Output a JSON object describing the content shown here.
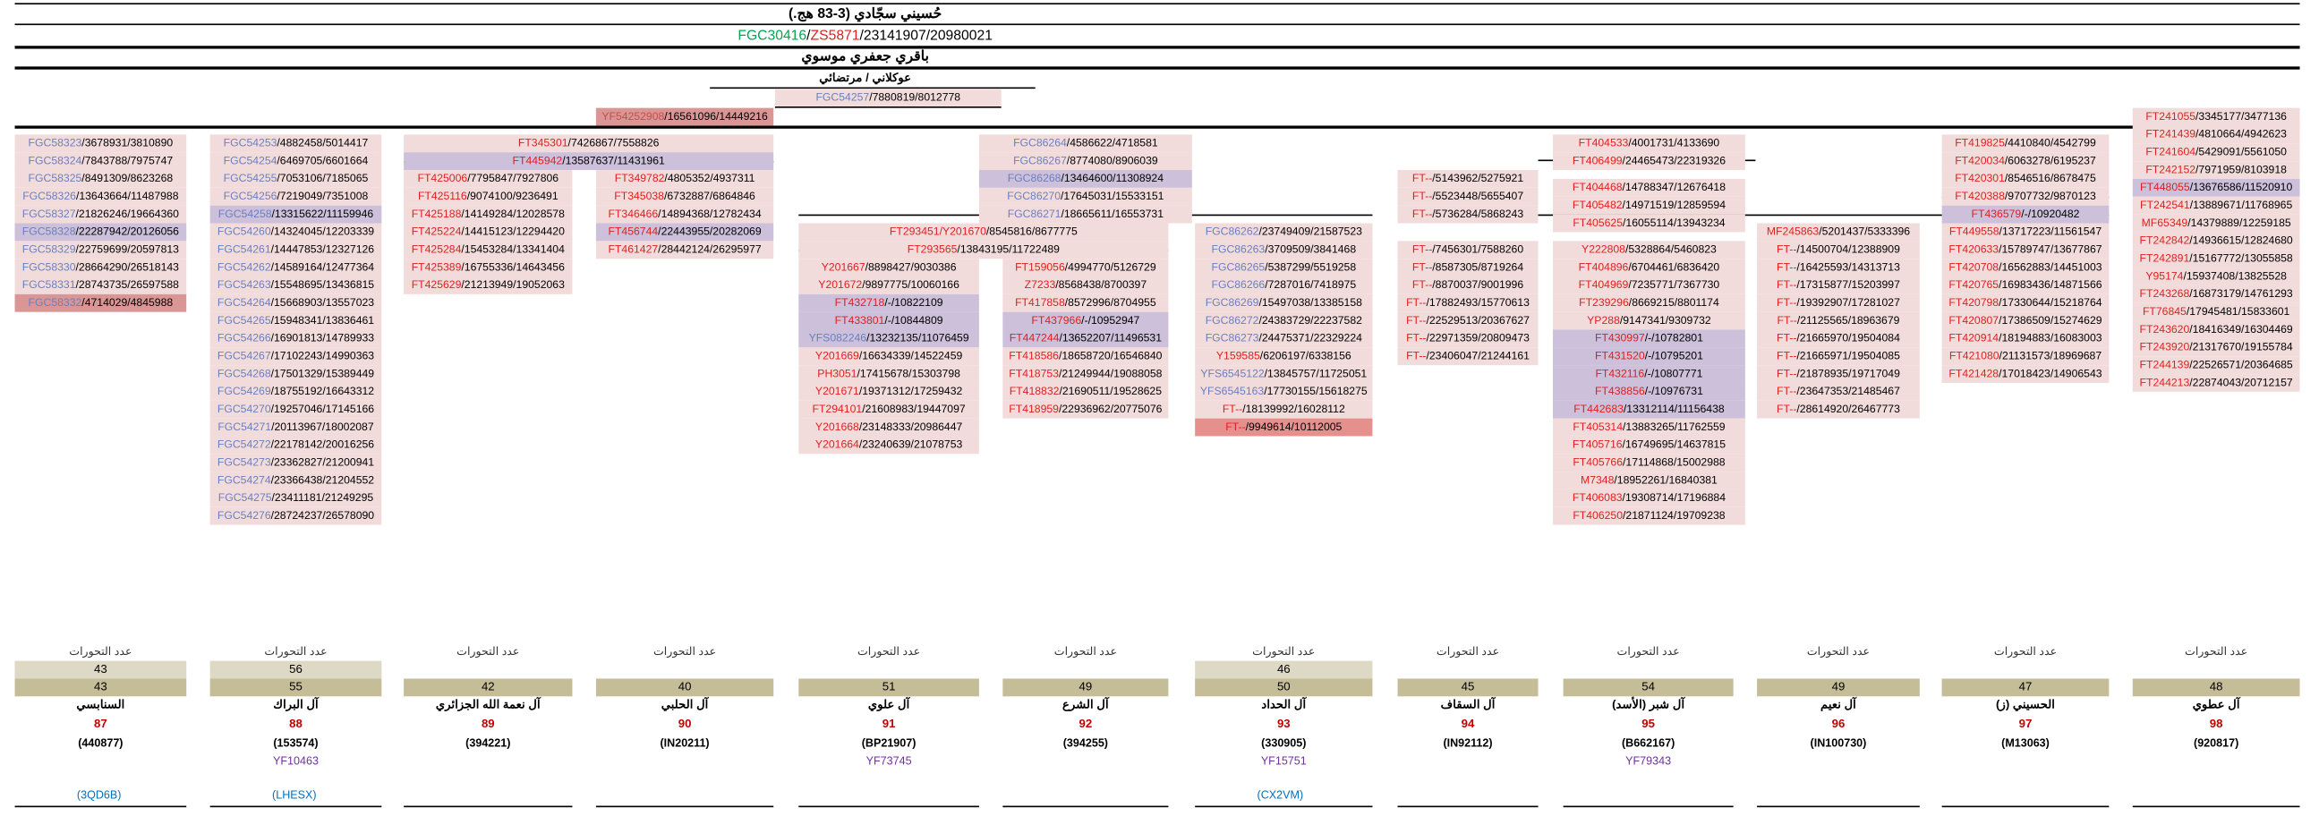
{
  "header": {
    "title": "حُسيني سجّادي (3-83 هج.)",
    "snp": [
      {
        "text": "FGC30416",
        "color": "#00a651"
      },
      {
        "text": "/",
        "color": "#000000"
      },
      {
        "text": "ZS5871",
        "color": "#e02020"
      },
      {
        "text": "/23141907/20980021",
        "color": "#000000"
      }
    ],
    "branch1": "باقري جعفري موسوي",
    "branch2": "عوكلاني / مرتضائي",
    "branch2_snp": {
      "snp": "FGC54257",
      "pos": "/7880819/8012778",
      "color": "#6a7fbf",
      "bg": "#f2dcdb"
    }
  },
  "groups": [
    {
      "color": "#c0504d",
      "bg": "#d99694",
      "cells": [
        {
          "snp": "YF54252908",
          "pos": "/16561096/14449216"
        }
      ]
    },
    {
      "color": "#6a7fbf",
      "bg": "#f2dcdb",
      "cells": [
        {
          "snp": "FGC58323",
          "pos": "/3678931/3810890"
        },
        {
          "snp": "FGC58324",
          "pos": "/7843788/7975747"
        },
        {
          "snp": "FGC58325",
          "pos": "/8491309/8623268"
        },
        {
          "snp": "FGC58326",
          "pos": "/13643664/11487988"
        },
        {
          "snp": "FGC58327",
          "pos": "/21826246/19664360"
        },
        {
          "snp": "FGC58328",
          "pos": "/22287942/20126056",
          "bg": "#ccc0da"
        },
        {
          "snp": "FGC58329",
          "pos": "/22759699/20597813"
        },
        {
          "snp": "FGC58330",
          "pos": "/28664290/26518143"
        },
        {
          "snp": "FGC58331",
          "pos": "/28743735/26597588"
        },
        {
          "snp": "FGC58332",
          "pos": "/4714029/4845988",
          "bg": "#da9694"
        }
      ]
    },
    {
      "color": "#6a7fbf",
      "bg": "#f2dcdb",
      "cells": [
        {
          "snp": "FGC54253",
          "pos": "/4882458/5014417"
        },
        {
          "snp": "FGC54254",
          "pos": "/6469705/6601664"
        },
        {
          "snp": "FGC54255",
          "pos": "/7053106/7185065"
        },
        {
          "snp": "FGC54256",
          "pos": "/7219049/7351008"
        },
        {
          "snp": "FGC54258",
          "pos": "/13315622/11159946",
          "bg": "#ccc0da"
        },
        {
          "snp": "FGC54260",
          "pos": "/14324045/12203339"
        },
        {
          "snp": "FGC54261",
          "pos": "/14447853/12327126"
        },
        {
          "snp": "FGC54262",
          "pos": "/14589164/12477364"
        },
        {
          "snp": "FGC54263",
          "pos": "/15548695/13436815"
        },
        {
          "snp": "FGC54264",
          "pos": "/15668903/13557023"
        },
        {
          "snp": "FGC54265",
          "pos": "/15948341/13836461"
        },
        {
          "snp": "FGC54266",
          "pos": "/16901813/14789933"
        },
        {
          "snp": "FGC54267",
          "pos": "/17102243/14990363"
        },
        {
          "snp": "FGC54268",
          "pos": "/17501329/15389449"
        },
        {
          "snp": "FGC54269",
          "pos": "/18755192/16643312"
        },
        {
          "snp": "FGC54270",
          "pos": "/19257046/17145166"
        },
        {
          "snp": "FGC54271",
          "pos": "/20113967/18002087"
        },
        {
          "snp": "FGC54272",
          "pos": "/22178142/20016256"
        },
        {
          "snp": "FGC54273",
          "pos": "/23362827/21200941"
        },
        {
          "snp": "FGC54274",
          "pos": "/23366438/21204552"
        },
        {
          "snp": "FGC54275",
          "pos": "/23411181/21249295"
        },
        {
          "snp": "FGC54276",
          "pos": "/28724237/26578090"
        }
      ]
    },
    {
      "color": "#e02020",
      "bg": "#f2dcdb",
      "cells": [
        {
          "snp": "FT345301",
          "pos": "/7426867/7558826"
        },
        {
          "snp": "FT445942",
          "pos": "/13587637/11431961",
          "bg": "#ccc0da"
        }
      ]
    },
    {
      "color": "#e02020",
      "bg": "#f2dcdb",
      "cells": [
        {
          "snp": "FT425006",
          "pos": "/7795847/7927806"
        },
        {
          "snp": "FT425116",
          "pos": "/9074100/9236491"
        },
        {
          "snp": "FT425188",
          "pos": "/14149284/12028578"
        },
        {
          "snp": "FT425224",
          "pos": "/14415123/12294420"
        },
        {
          "snp": "FT425284",
          "pos": "/15453284/13341404"
        },
        {
          "snp": "FT425389",
          "pos": "/16755336/14643456"
        },
        {
          "snp": "FT425629",
          "pos": "/21213949/19052063"
        }
      ]
    },
    {
      "color": "#e02020",
      "bg": "#f2dcdb",
      "cells": [
        {
          "snp": "FT349782",
          "pos": "/4805352/4937311"
        },
        {
          "snp": "FT345038",
          "pos": "/6732887/6864846"
        },
        {
          "snp": "FT346466",
          "pos": "/14894368/12782434"
        },
        {
          "snp": "FT456744",
          "pos": "/22443955/20282069",
          "bg": "#ccc0da"
        },
        {
          "snp": "FT461427",
          "pos": "/28442124/26295977"
        }
      ]
    },
    {
      "color": "#6a7fbf",
      "bg": "#f2dcdb",
      "cells": [
        {
          "snp": "FGC86264",
          "pos": "/4586622/4718581"
        },
        {
          "snp": "FGC86267",
          "pos": "/8774080/8906039"
        },
        {
          "snp": "FGC86268",
          "pos": "/13464600/11308924",
          "bg": "#ccc0da"
        },
        {
          "snp": "FGC86270",
          "pos": "/17645031/15533151"
        },
        {
          "snp": "FGC86271",
          "pos": "/18665611/16553731"
        }
      ]
    },
    {
      "color": "#e02020",
      "bg": "#f2dcdb",
      "cells": [
        {
          "snp": "FT293451/Y201670",
          "pos": "/8545816/8677775"
        },
        {
          "snp": "FT293565",
          "pos": "/13843195/11722489"
        }
      ]
    },
    {
      "color": "#e02020",
      "bg": "#f2dcdb",
      "cells": [
        {
          "snp": "Y201667",
          "pos": "/8898427/9030386"
        },
        {
          "snp": "Y201672",
          "pos": "/9897775/10060166"
        },
        {
          "snp": "FT432718",
          "pos": "/-/10822109",
          "bg": "#ccc0da"
        },
        {
          "snp": "FT433801",
          "pos": "/-/10844809",
          "bg": "#ccc0da"
        },
        {
          "snp": "YFS082246",
          "pos": "/13232135/11076459",
          "bg": "#ccc0da",
          "color": "#6a7fbf"
        },
        {
          "snp": "Y201669",
          "pos": "/16634339/14522459"
        },
        {
          "snp": "PH3051",
          "pos": "/17415678/15303798"
        },
        {
          "snp": "Y201671",
          "pos": "/19371312/17259432"
        },
        {
          "snp": "FT294101",
          "pos": "/21608983/19447097"
        },
        {
          "snp": "Y201668",
          "pos": "/23148333/20986447"
        },
        {
          "snp": "Y201664",
          "pos": "/23240639/21078753"
        }
      ]
    },
    {
      "color": "#e02020",
      "bg": "#f2dcdb",
      "cells": [
        {
          "snp": "FT159056",
          "pos": "/4994770/5126729"
        },
        {
          "snp": "Z7233",
          "pos": "/8568438/8700397"
        },
        {
          "snp": "FT417858",
          "pos": "/8572996/8704955"
        },
        {
          "snp": "FT437966",
          "pos": "/-/10952947",
          "bg": "#ccc0da"
        },
        {
          "snp": "FT447244",
          "pos": "/13652207/11496531",
          "bg": "#ccc0da"
        },
        {
          "snp": "FT418586",
          "pos": "/18658720/16546840"
        },
        {
          "snp": "FT418753",
          "pos": "/21249944/19088058"
        },
        {
          "snp": "FT418832",
          "pos": "/21690511/19528625"
        },
        {
          "snp": "FT418959",
          "pos": "/22936962/20775076"
        }
      ]
    },
    {
      "color": "#6a7fbf",
      "bg": "#f2dcdb",
      "cells": [
        {
          "snp": "FGC86262",
          "pos": "/23749409/21587523"
        },
        {
          "snp": "FGC86263",
          "pos": "/3709509/3841468"
        },
        {
          "snp": "FGC86265",
          "pos": "/5387299/5519258"
        },
        {
          "snp": "FGC86266",
          "pos": "/7287016/7418975"
        },
        {
          "snp": "FGC86269",
          "pos": "/15497038/13385158"
        },
        {
          "snp": "FGC86272",
          "pos": "/24383729/22237582"
        },
        {
          "snp": "FGC86273",
          "pos": "/24475371/22329224"
        },
        {
          "snp": "Y159585",
          "pos": "/6206197/6338156",
          "color": "#e02020"
        },
        {
          "snp": "YFS6545122",
          "pos": "/13845757/11725051"
        },
        {
          "snp": "YFS6545163",
          "pos": "/17730155/15618275"
        },
        {
          "snp": "FT--",
          "pos": "/18139992/16028112",
          "color": "#e02020"
        },
        {
          "snp": "FT--",
          "pos": "/9949614/10112005",
          "color": "#e02020",
          "bg": "#e6908e"
        }
      ]
    },
    {
      "color": "#e02020",
      "bg": "#f2dcdb",
      "cells": [
        {
          "snp": "FT--",
          "pos": "/5143962/5275921"
        },
        {
          "snp": "FT--",
          "pos": "/5523448/5655407"
        },
        {
          "snp": "FT--",
          "pos": "/5736284/5868243"
        },
        {
          "snp": "FT--",
          "pos": "/7456301/7588260"
        },
        {
          "snp": "FT--",
          "pos": "/8587305/8719264"
        },
        {
          "snp": "FT--",
          "pos": "/8870037/9001996"
        },
        {
          "snp": "FT--",
          "pos": "/17882493/15770613"
        },
        {
          "snp": "FT--",
          "pos": "/22529513/20367627"
        },
        {
          "snp": "FT--",
          "pos": "/22971359/20809473"
        },
        {
          "snp": "FT--",
          "pos": "/23406047/21244161"
        }
      ]
    },
    {
      "color": "#e02020",
      "bg": "#f2dcdb",
      "cells": [
        {
          "snp": "FT404533",
          "pos": "/4001731/4133690"
        },
        {
          "snp": "FT406499",
          "pos": "/24465473/22319326"
        },
        {
          "snp": "FT404468",
          "pos": "/14788347/12676418"
        },
        {
          "snp": "FT405482",
          "pos": "/14971519/12859594"
        },
        {
          "snp": "FT405625",
          "pos": "/16055114/13943234"
        },
        {
          "snp": "Y222808",
          "pos": "/5328864/5460823"
        },
        {
          "snp": "FT404896",
          "pos": "/6704461/6836420"
        },
        {
          "snp": "FT404969",
          "pos": "/7235771/7367730"
        },
        {
          "snp": "FT239296",
          "pos": "/8669215/8801174"
        },
        {
          "snp": "YP288",
          "pos": "/9147341/9309732"
        },
        {
          "snp": "FT430997",
          "pos": "/-/10782801",
          "bg": "#ccc0da"
        },
        {
          "snp": "FT431520",
          "pos": "/-/10795201",
          "bg": "#ccc0da"
        },
        {
          "snp": "FT432116",
          "pos": "/-/10807771",
          "bg": "#ccc0da"
        },
        {
          "snp": "FT438856",
          "pos": "/-/10976731",
          "bg": "#ccc0da"
        },
        {
          "snp": "FT442683",
          "pos": "/13312114/11156438",
          "bg": "#ccc0da"
        },
        {
          "snp": "FT405314",
          "pos": "/13883265/11762559"
        },
        {
          "snp": "FT405716",
          "pos": "/16749695/14637815"
        },
        {
          "snp": "FT405766",
          "pos": "/17114868/15002988"
        },
        {
          "snp": "M7348",
          "pos": "/18952261/16840381"
        },
        {
          "snp": "FT406083",
          "pos": "/19308714/17196884"
        },
        {
          "snp": "FT406250",
          "pos": "/21871124/19709238"
        }
      ]
    },
    {
      "color": "#e02020",
      "bg": "#f2dcdb",
      "cells": [
        {
          "snp": "MF245863",
          "pos": "/5201437/5333396"
        },
        {
          "snp": "FT--",
          "pos": "/14500704/12388909"
        },
        {
          "snp": "FT--",
          "pos": "/16425593/14313713"
        },
        {
          "snp": "FT--",
          "pos": "/17315877/15203997"
        },
        {
          "snp": "FT--",
          "pos": "/19392907/17281027"
        },
        {
          "snp": "FT--",
          "pos": "/21125565/18963679"
        },
        {
          "snp": "FT--",
          "pos": "/21665970/19504084"
        },
        {
          "snp": "FT--",
          "pos": "/21665971/19504085"
        },
        {
          "snp": "FT--",
          "pos": "/21878935/19717049"
        },
        {
          "snp": "FT--",
          "pos": "/23647353/21485467"
        },
        {
          "snp": "FT--",
          "pos": "/28614920/26467773"
        }
      ]
    },
    {
      "color": "#e02020",
      "bg": "#f2dcdb",
      "cells": [
        {
          "snp": "FT419825",
          "pos": "/4410840/4542799"
        },
        {
          "snp": "FT420034",
          "pos": "/6063278/6195237"
        },
        {
          "snp": "FT420301",
          "pos": "/8546516/8678475"
        },
        {
          "snp": "FT420388",
          "pos": "/9707732/9870123"
        },
        {
          "snp": "FT436579",
          "pos": "/-/10920482",
          "bg": "#ccc0da"
        },
        {
          "snp": "FT449558",
          "pos": "/13717223/11561547"
        },
        {
          "snp": "FT420633",
          "pos": "/15789747/13677867"
        },
        {
          "snp": "FT420708",
          "pos": "/16562883/14451003"
        },
        {
          "snp": "FT420765",
          "pos": "/16983436/14871566"
        },
        {
          "snp": "FT420798",
          "pos": "/17330644/15218764"
        },
        {
          "snp": "FT420807",
          "pos": "/17386509/15274629"
        },
        {
          "snp": "FT420914",
          "pos": "/18194883/16083003"
        },
        {
          "snp": "FT421080",
          "pos": "/21131573/18969687"
        },
        {
          "snp": "FT421428",
          "pos": "/17018423/14906543"
        }
      ]
    },
    {
      "color": "#e02020",
      "bg": "#f2dcdb",
      "cells": [
        {
          "snp": "FT241055",
          "pos": "/3345177/3477136"
        },
        {
          "snp": "FT241439",
          "pos": "/4810664/4942623"
        },
        {
          "snp": "FT241604",
          "pos": "/5429091/5561050"
        },
        {
          "snp": "FT242152",
          "pos": "/7971959/8103918"
        },
        {
          "snp": "FT448055",
          "pos": "/13676586/11520910",
          "bg": "#ccc0da"
        },
        {
          "snp": "FT242541",
          "pos": "/13889671/11768965"
        },
        {
          "snp": "MF65349",
          "pos": "/14379889/12259185"
        },
        {
          "snp": "FT242842",
          "pos": "/14936615/12824680"
        },
        {
          "snp": "FT242891",
          "pos": "/15167772/13055858"
        },
        {
          "snp": "Y95174",
          "pos": "/15937408/13825528"
        },
        {
          "snp": "FT243268",
          "pos": "/16873179/14761293"
        },
        {
          "snp": "FT76845",
          "pos": "/17945481/15833601"
        },
        {
          "snp": "FT243620",
          "pos": "/18416349/16304469"
        },
        {
          "snp": "FT243920",
          "pos": "/21317670/19155784"
        },
        {
          "snp": "FT244139",
          "pos": "/22526571/20364685"
        },
        {
          "snp": "FT244213",
          "pos": "/22874043/20712157"
        }
      ]
    }
  ],
  "footer_label": "عدد التحورات",
  "footer": [
    {
      "counts": [
        43,
        43
      ],
      "name": "السنابسي",
      "number": 87,
      "code": "(440877)",
      "link": "(3QD6B)"
    },
    {
      "counts": [
        56,
        55
      ],
      "name": "آل البراك",
      "number": 88,
      "code": "(153574)",
      "sub": "YF10463",
      "link": "(LHESX)"
    },
    {
      "counts": [
        42
      ],
      "name": "آل نعمة الله الجزائري",
      "number": 89,
      "code": "(394221)"
    },
    {
      "counts": [
        40
      ],
      "name": "آل الحلبي",
      "number": 90,
      "code": "(IN20211)"
    },
    {
      "counts": [
        51
      ],
      "name": "آل علوي",
      "number": 91,
      "code": "(BP21907)",
      "sub": "YF73745"
    },
    {
      "counts": [
        49
      ],
      "name": "آل الشرع",
      "number": 92,
      "code": "(394255)"
    },
    {
      "counts": [
        46,
        50
      ],
      "name": "آل الحداد",
      "number": 93,
      "code": "(330905)",
      "sub": "YF15751",
      "link": "(CX2VM)"
    },
    {
      "counts": [
        45
      ],
      "name": "آل السقاف",
      "number": 94,
      "code": "(IN92112)"
    },
    {
      "counts": [
        54
      ],
      "name": "آل شبر (الأسد)",
      "number": 95,
      "code": "(B662167)",
      "sub": "YF79343"
    },
    {
      "counts": [
        49
      ],
      "name": "آل نعيم",
      "number": 96,
      "code": "(IN100730)"
    },
    {
      "counts": [
        47
      ],
      "name": "الحسيني (ز)",
      "number": 97,
      "code": "(M13063)"
    },
    {
      "counts": [
        48
      ],
      "name": "آل عطوي",
      "number": 98,
      "code": "(920817)"
    }
  ]
}
